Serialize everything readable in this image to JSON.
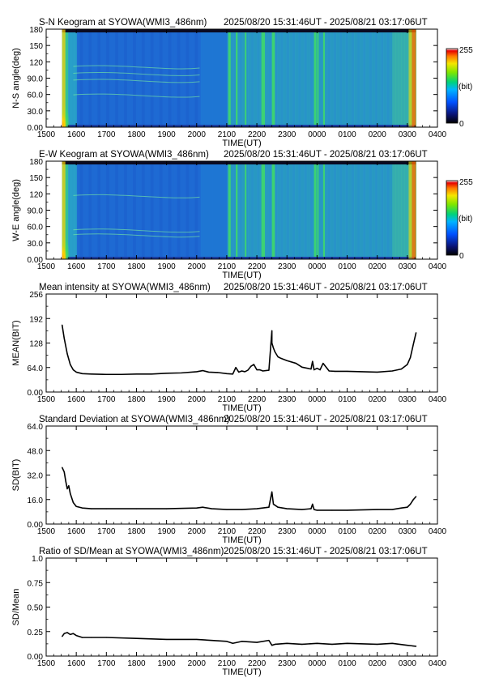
{
  "chart_data": [
    {
      "type": "heatmap",
      "title": "S-N Keogram at SYOWA(WMI3_486nm)",
      "time_range": "2025/08/20 15:31:46UT - 2025/08/21 03:17:06UT",
      "xlabel": "TIME(UT)",
      "ylabel": "N-S angle(deg)",
      "xticks": [
        "1500",
        "1600",
        "1700",
        "1800",
        "1900",
        "2000",
        "2100",
        "2200",
        "2300",
        "0000",
        "0100",
        "0200",
        "0300",
        "0400"
      ],
      "yticks": [
        "0.00",
        "30.0",
        "60.0",
        "90.0",
        "120",
        "150",
        "180"
      ],
      "ylim": [
        0,
        180
      ],
      "colorbar": {
        "min_label": "0",
        "max_label": "255",
        "unit_label": "(bit)"
      }
    },
    {
      "type": "heatmap",
      "title": "E-W Keogram at SYOWA(WMI3_486nm)",
      "time_range": "2025/08/20 15:31:46UT - 2025/08/21 03:17:06UT",
      "xlabel": "TIME(UT)",
      "ylabel": "W-E angle(deg)",
      "xticks": [
        "1500",
        "1600",
        "1700",
        "1800",
        "1900",
        "2000",
        "2100",
        "2200",
        "2300",
        "0000",
        "0100",
        "0200",
        "0300",
        "0400"
      ],
      "yticks": [
        "0.00",
        "30.0",
        "60.0",
        "90.0",
        "120",
        "150",
        "180"
      ],
      "ylim": [
        0,
        180
      ],
      "colorbar": {
        "min_label": "0",
        "max_label": "255",
        "unit_label": "(bit)"
      }
    },
    {
      "type": "line",
      "title": "Mean intensity at SYOWA(WMI3_486nm)",
      "time_range": "2025/08/20 15:31:46UT - 2025/08/21 03:17:06UT",
      "xlabel": "TIME(UT)",
      "ylabel": "MEAN(BIT)",
      "xticks": [
        "1500",
        "1600",
        "1700",
        "1800",
        "1900",
        "2000",
        "2100",
        "2200",
        "2300",
        "0000",
        "0100",
        "0200",
        "0300",
        "0400"
      ],
      "yticks": [
        "0.00",
        "64.0",
        "128",
        "192",
        "256"
      ],
      "ylim": [
        0,
        256
      ],
      "xlim_hours": [
        15,
        28
      ],
      "series": [
        {
          "x": [
            15.53,
            15.6,
            15.7,
            15.8,
            15.9,
            16.0,
            16.2,
            16.5,
            17.0,
            17.5,
            18.0,
            18.5,
            19.0,
            19.5,
            20.0,
            20.2,
            20.4,
            20.7,
            21.0,
            21.2,
            21.3,
            21.4,
            21.5,
            21.6,
            21.7,
            21.8,
            21.9,
            22.0,
            22.1,
            22.2,
            22.4,
            22.5,
            22.5,
            22.55,
            22.6,
            22.7,
            22.8,
            23.0,
            23.3,
            23.5,
            23.8,
            23.85,
            23.9,
            24.0,
            24.1,
            24.2,
            24.4,
            24.6,
            25.0,
            25.5,
            26.0,
            26.5,
            26.8,
            27.0,
            27.1,
            27.2,
            27.29
          ],
          "y": [
            175,
            140,
            100,
            72,
            58,
            52,
            48,
            47,
            46,
            46,
            47,
            47,
            49,
            50,
            53,
            56,
            52,
            51,
            48,
            47,
            64,
            52,
            55,
            53,
            57,
            67,
            72,
            58,
            58,
            55,
            57,
            160,
            128,
            115,
            105,
            92,
            88,
            82,
            75,
            65,
            60,
            80,
            58,
            62,
            58,
            75,
            55,
            54,
            54,
            53,
            52,
            55,
            60,
            72,
            90,
            125,
            155
          ]
        }
      ]
    },
    {
      "type": "line",
      "title": "Standard Deviation at SYOWA(WMI3_486nm)",
      "time_range": "2025/08/20 15:31:46UT - 2025/08/21 03:17:06UT",
      "xlabel": "TIME(UT)",
      "ylabel": "SD(BIT)",
      "xticks": [
        "1500",
        "1600",
        "1700",
        "1800",
        "1900",
        "2000",
        "2100",
        "2200",
        "2300",
        "0000",
        "0100",
        "0200",
        "0300",
        "0400"
      ],
      "yticks": [
        "0.00",
        "16.0",
        "32.0",
        "48.0",
        "64.0"
      ],
      "ylim": [
        0,
        64
      ],
      "xlim_hours": [
        15,
        28
      ],
      "series": [
        {
          "x": [
            15.53,
            15.6,
            15.65,
            15.7,
            15.75,
            15.8,
            15.85,
            15.9,
            16.0,
            16.2,
            16.5,
            17.0,
            18.0,
            19.0,
            20.0,
            20.2,
            20.5,
            21.0,
            21.5,
            22.0,
            22.4,
            22.5,
            22.55,
            22.7,
            23.0,
            23.5,
            23.8,
            23.85,
            23.9,
            24.0,
            24.5,
            25.0,
            26.0,
            26.5,
            26.8,
            27.0,
            27.1,
            27.2,
            27.29
          ],
          "y": [
            37,
            34,
            28,
            23,
            25,
            20,
            17,
            14,
            11.5,
            10.5,
            10,
            10,
            10,
            10,
            10.5,
            11,
            10,
            9.5,
            9.5,
            10,
            11,
            21,
            13,
            11,
            10,
            9.5,
            10,
            13,
            9.5,
            9,
            9,
            9,
            9.5,
            9.5,
            10.5,
            11,
            13,
            16,
            18
          ]
        }
      ]
    },
    {
      "type": "line",
      "title": "Ratio of SD/Mean at SYOWA(WMI3_486nm)",
      "time_range": "2025/08/20 15:31:46UT - 2025/08/21 03:17:06UT",
      "xlabel": "TIME(UT)",
      "ylabel": "SD/Mean",
      "xticks": [
        "1500",
        "1600",
        "1700",
        "1800",
        "1900",
        "2000",
        "2100",
        "2200",
        "2300",
        "0000",
        "0100",
        "0200",
        "0300",
        "0400"
      ],
      "yticks": [
        "0.00",
        "0.25",
        "0.50",
        "0.75",
        "1.0"
      ],
      "ylim": [
        0,
        1
      ],
      "xlim_hours": [
        15,
        28
      ],
      "series": [
        {
          "x": [
            15.53,
            15.6,
            15.7,
            15.8,
            15.9,
            16.0,
            16.2,
            16.5,
            17.0,
            18.0,
            19.0,
            20.0,
            21.0,
            21.2,
            21.5,
            22.0,
            22.4,
            22.5,
            22.6,
            23.0,
            23.5,
            24.0,
            24.5,
            25.0,
            26.0,
            26.5,
            27.0,
            27.29
          ],
          "y": [
            0.2,
            0.23,
            0.24,
            0.22,
            0.23,
            0.21,
            0.19,
            0.19,
            0.19,
            0.18,
            0.17,
            0.17,
            0.15,
            0.13,
            0.15,
            0.14,
            0.16,
            0.11,
            0.12,
            0.13,
            0.12,
            0.13,
            0.12,
            0.13,
            0.12,
            0.13,
            0.11,
            0.1
          ]
        }
      ]
    }
  ]
}
